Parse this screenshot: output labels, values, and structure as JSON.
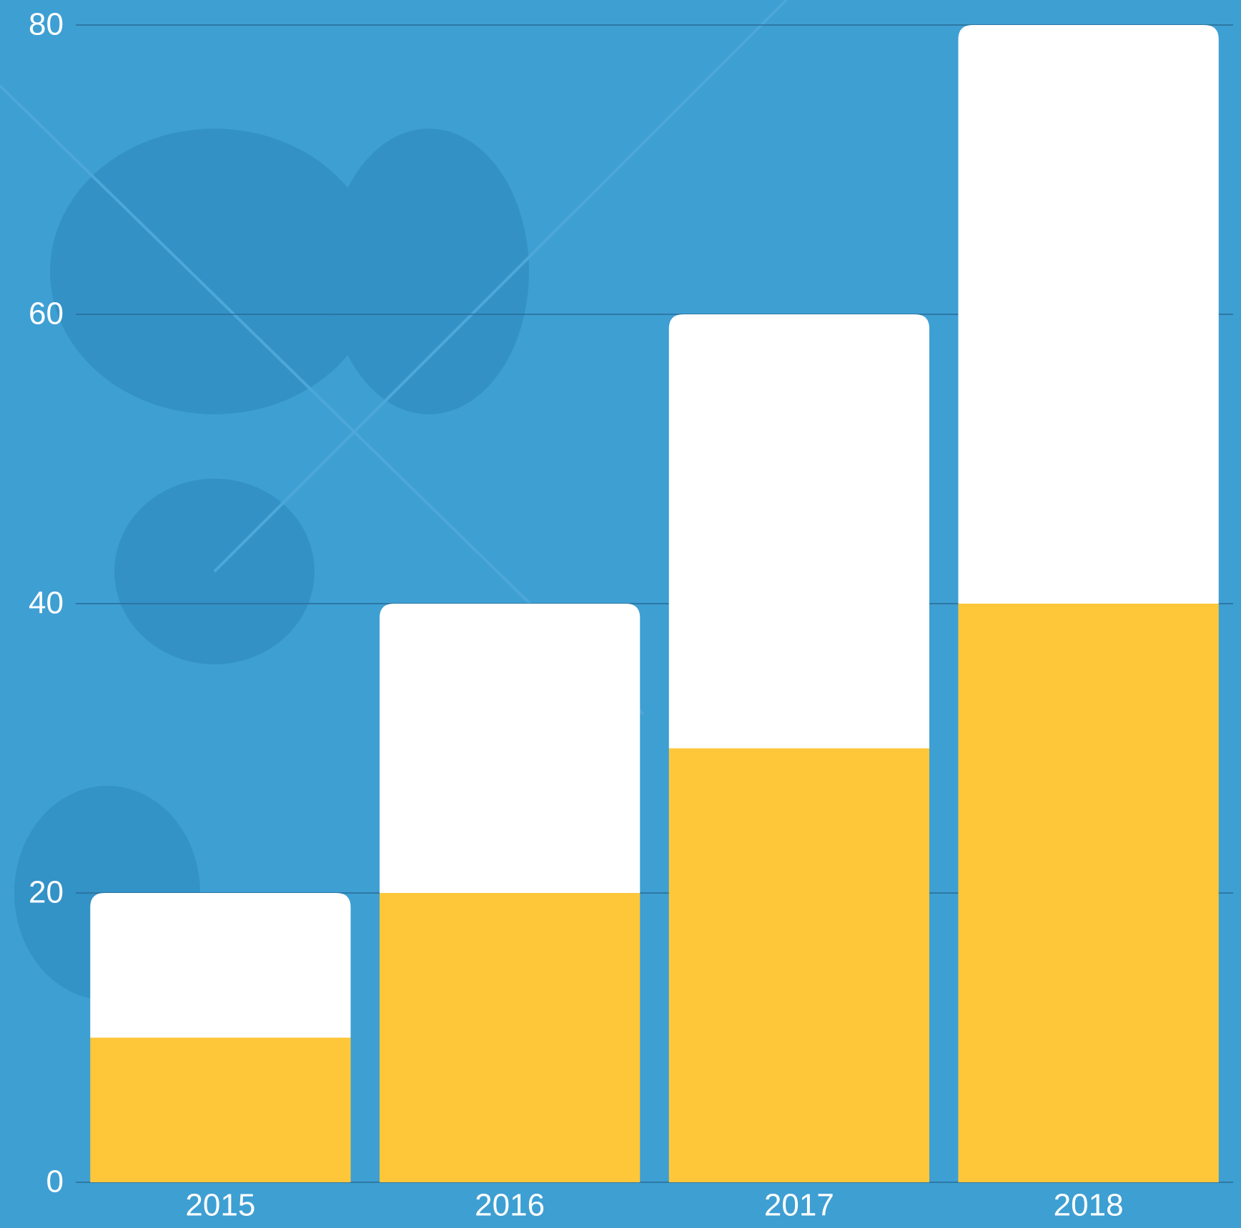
{
  "chart_data": {
    "type": "stacked-bar",
    "categories": [
      "2015",
      "2016",
      "2017",
      "2018"
    ],
    "series": [
      {
        "color": "#fec73a",
        "values": [
          10,
          20,
          30,
          40
        ]
      },
      {
        "color": "#ffffff",
        "values": [
          10,
          20,
          30,
          40
        ]
      }
    ],
    "ylim": [
      0,
      80
    ],
    "yticks": [
      0,
      20,
      40,
      60,
      80
    ],
    "grid": true
  }
}
